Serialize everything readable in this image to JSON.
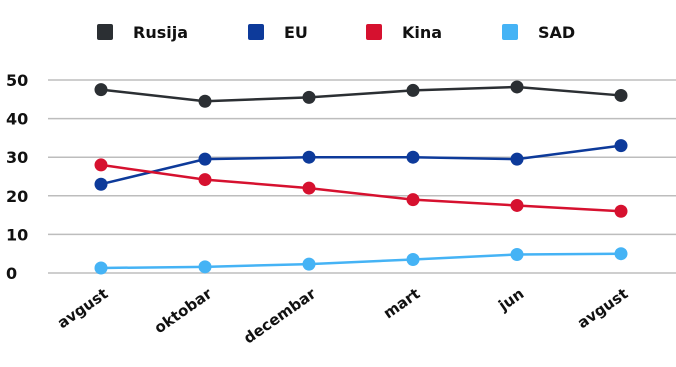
{
  "chart_data": {
    "type": "line",
    "title": "",
    "xlabel": "",
    "ylabel": "",
    "categories": [
      "avgust",
      "oktobar",
      "decembar",
      "mart",
      "jun",
      "avgust"
    ],
    "ylim": [
      0,
      50
    ],
    "yticks": [
      "0",
      "10",
      "20",
      "30",
      "40",
      "50"
    ],
    "grid": true,
    "legend_position": "top",
    "series": [
      {
        "name": "Rusija",
        "color": "#2b2f33",
        "values": [
          47.5,
          44.5,
          45.5,
          47.3,
          48.2,
          46
        ]
      },
      {
        "name": "EU",
        "color": "#0d3a9a",
        "values": [
          23,
          29.5,
          30,
          30,
          29.5,
          33
        ]
      },
      {
        "name": "Kina",
        "color": "#d6112f",
        "values": [
          28,
          24.2,
          22,
          19,
          17.5,
          16
        ]
      },
      {
        "name": "SAD",
        "color": "#45b3f5",
        "values": [
          1.3,
          1.6,
          2.3,
          3.5,
          4.8,
          5
        ]
      }
    ]
  }
}
